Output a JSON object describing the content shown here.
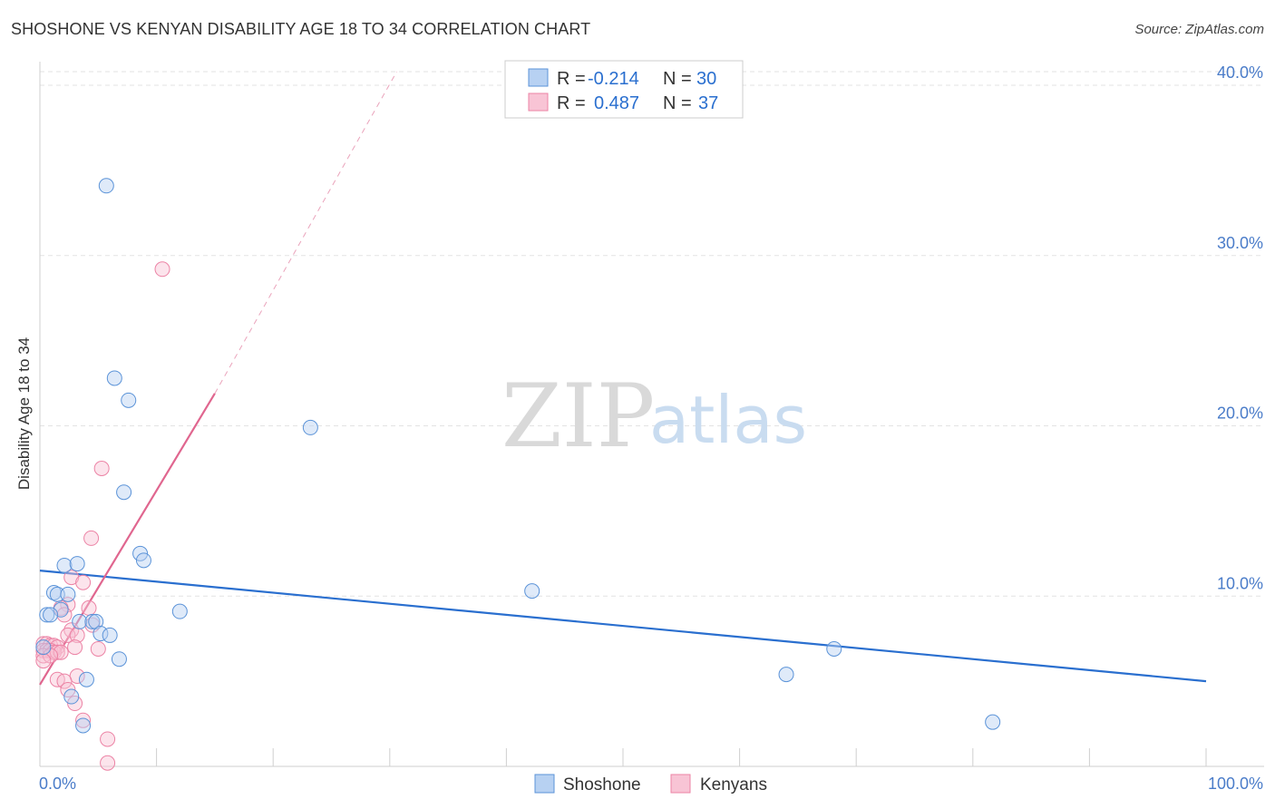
{
  "title": "SHOSHONE VS KENYAN DISABILITY AGE 18 TO 34 CORRELATION CHART",
  "source": "Source: ZipAtlas.com",
  "watermark": {
    "zip": "ZIP",
    "atlas": "atlas"
  },
  "legend": {
    "r_label": "R =",
    "n_label": "N =",
    "rows": [
      {
        "series": "Shoshone",
        "r": "-0.214",
        "n": "30"
      },
      {
        "series": "Kenyans",
        "r": "0.487",
        "n": "37"
      }
    ]
  },
  "bottom_legend": [
    "Shoshone",
    "Kenyans"
  ],
  "chart_data": {
    "type": "scatter",
    "title": "SHOSHONE VS KENYAN DISABILITY AGE 18 TO 34 CORRELATION CHART",
    "xlabel": "",
    "ylabel": "Disability Age 18 to 34",
    "xlim": [
      0,
      100
    ],
    "ylim": [
      0,
      40.8
    ],
    "x_tick_labels": [
      "0.0%",
      "100.0%"
    ],
    "y_ticks": [
      10,
      20,
      30,
      40
    ],
    "y_tick_labels": [
      "10.0%",
      "20.0%",
      "30.0%",
      "40.0%"
    ],
    "colors": {
      "Shoshone": "#5b93d8",
      "Kenyans": "#ec83a5",
      "Shoshone_line": "#2a6fcf",
      "Kenyans_line": "#e0668f",
      "tick": "#4a7cc9"
    },
    "series": [
      {
        "name": "Shoshone",
        "points": [
          {
            "x": 5.7,
            "y": 34.1
          },
          {
            "x": 6.4,
            "y": 22.8
          },
          {
            "x": 7.6,
            "y": 21.5
          },
          {
            "x": 23.2,
            "y": 19.9
          },
          {
            "x": 7.2,
            "y": 16.1
          },
          {
            "x": 8.6,
            "y": 12.5
          },
          {
            "x": 8.9,
            "y": 12.1
          },
          {
            "x": 2.1,
            "y": 11.8
          },
          {
            "x": 3.2,
            "y": 11.9
          },
          {
            "x": 1.2,
            "y": 10.2
          },
          {
            "x": 1.5,
            "y": 10.1
          },
          {
            "x": 2.4,
            "y": 10.1
          },
          {
            "x": 1.8,
            "y": 9.2
          },
          {
            "x": 0.6,
            "y": 8.9
          },
          {
            "x": 0.9,
            "y": 8.9
          },
          {
            "x": 12.0,
            "y": 9.1
          },
          {
            "x": 42.2,
            "y": 10.3
          },
          {
            "x": 3.4,
            "y": 8.5
          },
          {
            "x": 4.5,
            "y": 8.5
          },
          {
            "x": 4.8,
            "y": 8.5
          },
          {
            "x": 5.2,
            "y": 7.8
          },
          {
            "x": 6.0,
            "y": 7.7
          },
          {
            "x": 6.8,
            "y": 6.3
          },
          {
            "x": 68.1,
            "y": 6.9
          },
          {
            "x": 4.0,
            "y": 5.1
          },
          {
            "x": 64.0,
            "y": 5.4
          },
          {
            "x": 2.7,
            "y": 4.1
          },
          {
            "x": 3.7,
            "y": 2.4
          },
          {
            "x": 81.7,
            "y": 2.6
          },
          {
            "x": 0.3,
            "y": 7.0
          }
        ],
        "trend": {
          "x": [
            0,
            100
          ],
          "y": [
            11.5,
            5.0
          ]
        }
      },
      {
        "name": "Kenyans",
        "points": [
          {
            "x": 10.5,
            "y": 29.2
          },
          {
            "x": 5.3,
            "y": 17.5
          },
          {
            "x": 4.4,
            "y": 13.4
          },
          {
            "x": 2.7,
            "y": 11.1
          },
          {
            "x": 3.7,
            "y": 10.8
          },
          {
            "x": 2.4,
            "y": 9.5
          },
          {
            "x": 1.8,
            "y": 9.3
          },
          {
            "x": 4.2,
            "y": 9.3
          },
          {
            "x": 2.1,
            "y": 8.9
          },
          {
            "x": 4.5,
            "y": 8.3
          },
          {
            "x": 2.7,
            "y": 8.0
          },
          {
            "x": 2.4,
            "y": 7.7
          },
          {
            "x": 3.2,
            "y": 7.7
          },
          {
            "x": 3.0,
            "y": 7.0
          },
          {
            "x": 0.3,
            "y": 7.2
          },
          {
            "x": 0.6,
            "y": 7.2
          },
          {
            "x": 0.9,
            "y": 7.1
          },
          {
            "x": 1.2,
            "y": 7.1
          },
          {
            "x": 1.5,
            "y": 7.0
          },
          {
            "x": 0.3,
            "y": 6.8
          },
          {
            "x": 0.6,
            "y": 6.8
          },
          {
            "x": 0.9,
            "y": 6.8
          },
          {
            "x": 1.2,
            "y": 6.7
          },
          {
            "x": 1.5,
            "y": 6.7
          },
          {
            "x": 1.8,
            "y": 6.7
          },
          {
            "x": 0.3,
            "y": 6.5
          },
          {
            "x": 0.9,
            "y": 6.5
          },
          {
            "x": 5.0,
            "y": 6.9
          },
          {
            "x": 0.3,
            "y": 6.2
          },
          {
            "x": 3.2,
            "y": 5.3
          },
          {
            "x": 1.5,
            "y": 5.1
          },
          {
            "x": 2.1,
            "y": 5.0
          },
          {
            "x": 2.4,
            "y": 4.5
          },
          {
            "x": 3.0,
            "y": 3.7
          },
          {
            "x": 3.7,
            "y": 2.7
          },
          {
            "x": 5.8,
            "y": 1.6
          },
          {
            "x": 5.8,
            "y": 0.2
          }
        ],
        "trend": {
          "x": [
            0,
            15
          ],
          "y": [
            4.8,
            21.9
          ]
        },
        "trend_extension": {
          "x": [
            15,
            30.6
          ],
          "y": [
            21.9,
            40.8
          ]
        }
      }
    ]
  }
}
